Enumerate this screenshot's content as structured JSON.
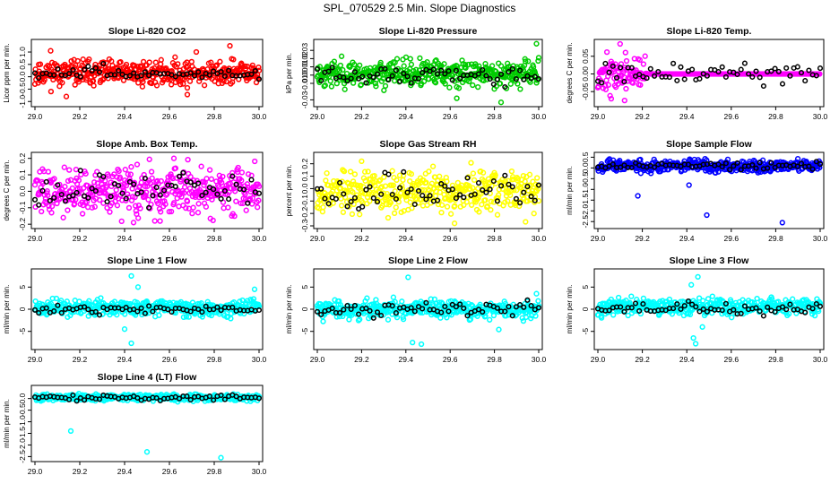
{
  "figure": {
    "title": "SPL_070529  2.5 Min. Slope Diagnostics"
  },
  "chart_data": [
    {
      "type": "scatter",
      "title": "Slope Li-820 CO2",
      "ylabel": "Licor ppm per min.",
      "xlim": [
        29.0,
        30.0
      ],
      "ylim": [
        -1.1,
        1.4
      ],
      "xticks": [
        "29.0",
        "29.2",
        "29.4",
        "29.6",
        "29.8",
        "30.0"
      ],
      "yticks": [
        "-1.0",
        "-0.5",
        "0.0",
        "0.5",
        "1.0"
      ],
      "color": "#ff0000",
      "pattern": {
        "center": 0.15,
        "spread": 0.35,
        "seed": 11
      },
      "outliers": [
        {
          "x": 29.14,
          "y": -0.8
        },
        {
          "x": 29.87,
          "y": 1.25
        },
        {
          "x": 29.07,
          "y": 1.05
        },
        {
          "x": 29.72,
          "y": 1.0
        },
        {
          "x": 29.68,
          "y": -0.72
        }
      ],
      "black_points": {
        "center": 0.15,
        "spread": 0.2
      }
    },
    {
      "type": "scatter",
      "title": "Slope Li-820 Pressure",
      "ylabel": "kPa per min.",
      "xlim": [
        29.0,
        30.0
      ],
      "ylim": [
        -0.035,
        0.04
      ],
      "xticks": [
        "29.0",
        "29.2",
        "29.4",
        "29.6",
        "29.8",
        "30.0"
      ],
      "yticks": [
        "-0.03",
        "-0.01",
        "0.00",
        "0.01",
        "0.02",
        "0.03"
      ],
      "color": "#00cc00",
      "pattern": {
        "center": 0.002,
        "spread": 0.011,
        "seed": 23
      },
      "outliers": [
        {
          "x": 29.83,
          "y": -0.033
        },
        {
          "x": 29.99,
          "y": 0.038
        },
        {
          "x": 29.63,
          "y": -0.028
        }
      ],
      "black_points": {
        "center": 0.0,
        "spread": 0.008
      }
    },
    {
      "type": "scatter",
      "title": "Slope Li-820 Temp.",
      "ylabel": "degrees C per min.",
      "xlim": [
        29.0,
        30.0
      ],
      "ylim": [
        -0.085,
        0.09
      ],
      "xticks": [
        "29.0",
        "29.2",
        "29.4",
        "29.6",
        "29.8",
        "30.0"
      ],
      "yticks": [
        "-0.05",
        "0.00",
        "0.05"
      ],
      "color": "#ff00ff",
      "pattern": {
        "center": 0.0,
        "spread": 0.035,
        "seed": 37,
        "active_until": 29.22,
        "flat_after": 0.0
      },
      "outliers": [
        {
          "x": 29.1,
          "y": 0.085
        },
        {
          "x": 29.12,
          "y": -0.075
        },
        {
          "x": 29.06,
          "y": -0.07
        }
      ],
      "black_points": {
        "center": 0.0,
        "spread": 0.02
      }
    },
    {
      "type": "scatter",
      "title": "Slope Amb. Box Temp.",
      "ylabel": "degrees C per min.",
      "xlim": [
        29.0,
        30.0
      ],
      "ylim": [
        -0.21,
        0.22
      ],
      "xticks": [
        "29.0",
        "29.2",
        "29.4",
        "29.6",
        "29.8",
        "30.0"
      ],
      "yticks": [
        "-0.2",
        "-0.1",
        "0.0",
        "0.1",
        "0.2"
      ],
      "color": "#ff00ff",
      "pattern": {
        "center": 0.0,
        "spread": 0.1,
        "seed": 41
      },
      "outliers": [
        {
          "x": 29.44,
          "y": -0.19
        },
        {
          "x": 29.62,
          "y": 0.2
        }
      ],
      "black_points": {
        "center": 0.0,
        "spread": 0.07
      }
    },
    {
      "type": "scatter",
      "title": "Slope Gas Stream RH",
      "ylabel": "percent per min.",
      "xlim": [
        29.0,
        30.0
      ],
      "ylim": [
        -0.3,
        0.27
      ],
      "xticks": [
        "29.0",
        "29.2",
        "29.4",
        "29.6",
        "29.8",
        "30.0"
      ],
      "yticks": [
        "-0.3",
        "-0.2",
        "-0.1",
        "0.0",
        "0.1",
        "0.2"
      ],
      "color": "#ffff00",
      "pattern": {
        "center": -0.02,
        "spread": 0.12,
        "seed": 53
      },
      "outliers": [
        {
          "x": 29.2,
          "y": 0.22
        },
        {
          "x": 29.62,
          "y": -0.28
        }
      ],
      "black_points": {
        "center": -0.02,
        "spread": 0.1
      }
    },
    {
      "type": "scatter",
      "title": "Slope Sample Flow",
      "ylabel": "ml/min per min.",
      "xlim": [
        29.0,
        30.0
      ],
      "ylim": [
        -2.7,
        0.6
      ],
      "xticks": [
        "29.0",
        "29.2",
        "29.4",
        "29.6",
        "29.8",
        "30.0"
      ],
      "yticks": [
        "-2.5",
        "-2.0",
        "-1.5",
        "-1.0",
        "-0.5",
        "0.0",
        "0.5"
      ],
      "color": "#0000ff",
      "pattern": {
        "center": 0.1,
        "spread": 0.2,
        "seed": 67
      },
      "outliers": [
        {
          "x": 29.18,
          "y": -1.3
        },
        {
          "x": 29.49,
          "y": -2.2
        },
        {
          "x": 29.83,
          "y": -2.55
        },
        {
          "x": 29.41,
          "y": -0.8
        }
      ],
      "black_points": {
        "center": 0.1,
        "spread": 0.12
      }
    },
    {
      "type": "scatter",
      "title": "Slope Line 1 Flow",
      "ylabel": "ml/min per min.",
      "xlim": [
        29.0,
        30.0
      ],
      "ylim": [
        -8.5,
        8.5
      ],
      "xticks": [
        "29.0",
        "29.2",
        "29.4",
        "29.6",
        "29.8",
        "30.0"
      ],
      "yticks": [
        "-5",
        "0",
        "5"
      ],
      "color": "#00ffff",
      "pattern": {
        "center": 0.3,
        "spread": 1.2,
        "seed": 71
      },
      "outliers": [
        {
          "x": 29.43,
          "y": -7.7
        },
        {
          "x": 29.43,
          "y": 7.5
        },
        {
          "x": 29.4,
          "y": -4.5
        },
        {
          "x": 29.46,
          "y": 5.0
        },
        {
          "x": 29.98,
          "y": 4.5
        }
      ],
      "black_points": {
        "center": 0.0,
        "spread": 0.6
      }
    },
    {
      "type": "scatter",
      "title": "Slope Line 2 Flow",
      "ylabel": "ml/min per min.",
      "xlim": [
        29.0,
        30.0
      ],
      "ylim": [
        -8.5,
        8.5
      ],
      "xticks": [
        "29.0",
        "29.2",
        "29.4",
        "29.6",
        "29.8",
        "30.0"
      ],
      "yticks": [
        "-5",
        "0",
        "5"
      ],
      "color": "#00ffff",
      "pattern": {
        "center": 0.0,
        "spread": 1.4,
        "seed": 83
      },
      "outliers": [
        {
          "x": 29.43,
          "y": -7.5
        },
        {
          "x": 29.47,
          "y": -7.9
        },
        {
          "x": 29.41,
          "y": 7.2
        },
        {
          "x": 29.82,
          "y": -4.6
        },
        {
          "x": 29.99,
          "y": 3.5
        }
      ],
      "black_points": {
        "center": 0.0,
        "spread": 1.0
      }
    },
    {
      "type": "scatter",
      "title": "Slope Line 3 Flow",
      "ylabel": "ml/min per min.",
      "xlim": [
        29.0,
        30.0
      ],
      "ylim": [
        -8.5,
        8.5
      ],
      "xticks": [
        "29.0",
        "29.2",
        "29.4",
        "29.6",
        "29.8",
        "30.0"
      ],
      "yticks": [
        "-5",
        "0",
        "5"
      ],
      "color": "#00ffff",
      "pattern": {
        "center": 0.5,
        "spread": 1.3,
        "seed": 97
      },
      "outliers": [
        {
          "x": 29.43,
          "y": -6.5
        },
        {
          "x": 29.44,
          "y": -7.8
        },
        {
          "x": 29.45,
          "y": 7.3
        },
        {
          "x": 29.42,
          "y": 5.5
        },
        {
          "x": 29.47,
          "y": -4.0
        }
      ],
      "black_points": {
        "center": 0.2,
        "spread": 0.9
      }
    },
    {
      "type": "scatter",
      "title": "Slope Line 4 (LT) Flow",
      "ylabel": "ml/min per min.",
      "xlim": [
        29.0,
        30.0
      ],
      "ylim": [
        -2.6,
        0.45
      ],
      "xticks": [
        "29.0",
        "29.2",
        "29.4",
        "29.6",
        "29.8",
        "30.0"
      ],
      "yticks": [
        "-2.5",
        "-2.0",
        "-1.5",
        "-1.0",
        "-0.5",
        "0.0"
      ],
      "color": "#00ffff",
      "pattern": {
        "center": 0.05,
        "spread": 0.1,
        "seed": 101
      },
      "outliers": [
        {
          "x": 29.16,
          "y": -1.4
        },
        {
          "x": 29.5,
          "y": -2.3
        },
        {
          "x": 29.83,
          "y": -2.55
        }
      ],
      "black_points": {
        "center": 0.05,
        "spread": 0.08
      }
    }
  ]
}
